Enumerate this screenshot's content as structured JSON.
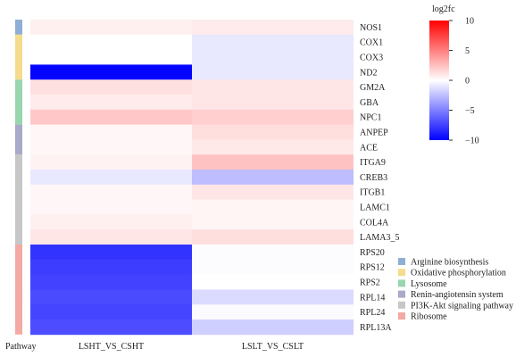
{
  "chart_data": {
    "type": "heatmap",
    "title": "",
    "colorbar": {
      "title": "log2fc",
      "min": -10,
      "max": 10,
      "ticks": [
        10,
        5,
        0,
        -5,
        -10
      ],
      "tick_labels": [
        "10",
        "5",
        "0",
        "−5",
        "−10"
      ],
      "colors": {
        "low": "#0000ff",
        "mid": "#ffffff",
        "high": "#ff0000"
      }
    },
    "columns": [
      "LSHT_VS_CSHT",
      "LSLT_VS_CSLT"
    ],
    "rows": [
      "NOS1",
      "COX1",
      "COX3",
      "ND2",
      "GM2A",
      "GBA",
      "NPC1",
      "ANPEP",
      "ACE",
      "ITGA9",
      "CREB3",
      "ITGB1",
      "LAMC1",
      "COL4A",
      "LAMA3_5",
      "RPS20",
      "RPS12",
      "RPS2",
      "RPL14",
      "RPL24",
      "RPL13A"
    ],
    "values": [
      [
        0.6,
        0.8
      ],
      [
        0.0,
        -0.9
      ],
      [
        0.0,
        -0.9
      ],
      [
        -9.8,
        -0.9
      ],
      [
        1.2,
        1.0
      ],
      [
        0.8,
        1.0
      ],
      [
        2.2,
        1.9
      ],
      [
        0.3,
        1.3
      ],
      [
        0.3,
        0.9
      ],
      [
        0.5,
        2.4
      ],
      [
        -0.9,
        -2.6
      ],
      [
        0.3,
        1.0
      ],
      [
        0.3,
        0.4
      ],
      [
        0.6,
        0.4
      ],
      [
        1.0,
        1.3
      ],
      [
        -8.0,
        -0.1
      ],
      [
        -7.6,
        -0.1
      ],
      [
        -7.4,
        0.0
      ],
      [
        -7.1,
        -1.4
      ],
      [
        -7.3,
        -0.2
      ],
      [
        -7.0,
        -1.9
      ]
    ],
    "pathway_label": "Pathway",
    "pathways": [
      {
        "name": "Arginine biosynthesis",
        "color": "#8eaed6",
        "start": 0,
        "end": 0
      },
      {
        "name": "Oxidative phosphorylation",
        "color": "#f5dc8c",
        "start": 1,
        "end": 3
      },
      {
        "name": "Lysosome",
        "color": "#98d6ae",
        "start": 4,
        "end": 6
      },
      {
        "name": "Renin-angiotensin system",
        "color": "#a9a9c9",
        "start": 7,
        "end": 8
      },
      {
        "name": "PI3K-Akt signaling pathway",
        "color": "#c7c7c7",
        "start": 9,
        "end": 14
      },
      {
        "name": "Ribosome",
        "color": "#f4a9a4",
        "start": 15,
        "end": 20
      }
    ]
  }
}
